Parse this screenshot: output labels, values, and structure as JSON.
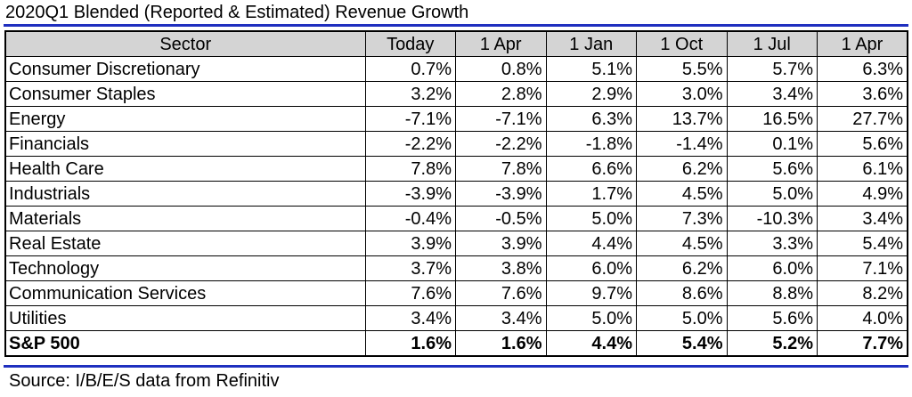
{
  "title": "2020Q1 Blended (Reported & Estimated) Revenue Growth",
  "source": "Source: I/B/E/S data from Refinitiv",
  "accent_color": "#1f2fbf",
  "chart_data": {
    "type": "table",
    "title": "2020Q1 Blended (Reported & Estimated) Revenue Growth",
    "columns": [
      "Sector",
      "Today",
      "1 Apr",
      "1 Jan",
      "1 Oct",
      "1 Jul",
      "1 Apr"
    ],
    "rows": [
      {
        "sector": "Consumer Discretionary",
        "values": [
          "0.7%",
          "0.8%",
          "5.1%",
          "5.5%",
          "5.7%",
          "6.3%"
        ]
      },
      {
        "sector": "Consumer Staples",
        "values": [
          "3.2%",
          "2.8%",
          "2.9%",
          "3.0%",
          "3.4%",
          "3.6%"
        ]
      },
      {
        "sector": "Energy",
        "values": [
          "-7.1%",
          "-7.1%",
          "6.3%",
          "13.7%",
          "16.5%",
          "27.7%"
        ]
      },
      {
        "sector": "Financials",
        "values": [
          "-2.2%",
          "-2.2%",
          "-1.8%",
          "-1.4%",
          "0.1%",
          "5.6%"
        ]
      },
      {
        "sector": "Health Care",
        "values": [
          "7.8%",
          "7.8%",
          "6.6%",
          "6.2%",
          "5.6%",
          "6.1%"
        ]
      },
      {
        "sector": "Industrials",
        "values": [
          "-3.9%",
          "-3.9%",
          "1.7%",
          "4.5%",
          "5.0%",
          "4.9%"
        ]
      },
      {
        "sector": "Materials",
        "values": [
          "-0.4%",
          "-0.5%",
          "5.0%",
          "7.3%",
          "-10.3%",
          "3.4%"
        ]
      },
      {
        "sector": "Real Estate",
        "values": [
          "3.9%",
          "3.9%",
          "4.4%",
          "4.5%",
          "3.3%",
          "5.4%"
        ]
      },
      {
        "sector": "Technology",
        "values": [
          "3.7%",
          "3.8%",
          "6.0%",
          "6.2%",
          "6.0%",
          "7.1%"
        ]
      },
      {
        "sector": "Communication Services",
        "values": [
          "7.6%",
          "7.6%",
          "9.7%",
          "8.6%",
          "8.8%",
          "8.2%"
        ]
      },
      {
        "sector": "Utilities",
        "values": [
          "3.4%",
          "3.4%",
          "5.0%",
          "5.0%",
          "5.6%",
          "4.0%"
        ]
      }
    ],
    "total": {
      "sector": "S&P 500",
      "values": [
        "1.6%",
        "1.6%",
        "4.4%",
        "5.4%",
        "5.2%",
        "7.7%"
      ]
    }
  }
}
